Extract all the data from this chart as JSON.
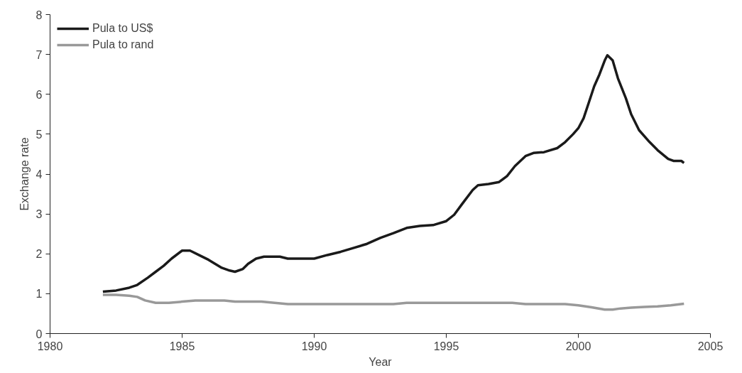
{
  "chart_data": {
    "type": "line",
    "xlabel": "Year",
    "ylabel": "Exchange rate",
    "xlim": [
      1980,
      2005
    ],
    "ylim": [
      0,
      8
    ],
    "xticks": [
      1980,
      1985,
      1990,
      1995,
      2000,
      2005
    ],
    "yticks": [
      0,
      1,
      2,
      3,
      4,
      5,
      6,
      7,
      8
    ],
    "grid": false,
    "legend": "top left",
    "line_style": "solid",
    "marker": "none",
    "series": [
      {
        "name": "Pula to US$",
        "color": "#1a1a1a",
        "x": [
          1982,
          1982.5,
          1983,
          1983.3,
          1983.7,
          1984,
          1984.3,
          1984.6,
          1985,
          1985.3,
          1985.7,
          1986,
          1986.5,
          1986.8,
          1987,
          1987.3,
          1987.5,
          1987.8,
          1988.1,
          1988.7,
          1989,
          1989.5,
          1990,
          1990.5,
          1991,
          1991.5,
          1992,
          1992.5,
          1993,
          1993.5,
          1994,
          1994.5,
          1995,
          1995.3,
          1995.6,
          1996,
          1996.2,
          1996.6,
          1997,
          1997.3,
          1997.6,
          1998,
          1998.3,
          1998.7,
          1999.2,
          1999.5,
          1999.8,
          2000,
          2000.2,
          2000.4,
          2000.6,
          2000.8,
          2001,
          2001.1,
          2001.3,
          2001.5,
          2001.8,
          2002,
          2002.3,
          2002.7,
          2003,
          2003.4,
          2003.6,
          2003.9,
          2004
        ],
        "values": [
          1.05,
          1.08,
          1.15,
          1.22,
          1.4,
          1.55,
          1.7,
          1.88,
          2.08,
          2.08,
          1.95,
          1.85,
          1.65,
          1.58,
          1.55,
          1.62,
          1.75,
          1.88,
          1.93,
          1.93,
          1.88,
          1.88,
          1.88,
          1.97,
          2.05,
          2.15,
          2.25,
          2.4,
          2.52,
          2.65,
          2.7,
          2.72,
          2.82,
          2.98,
          3.25,
          3.6,
          3.72,
          3.75,
          3.8,
          3.95,
          4.2,
          4.45,
          4.53,
          4.55,
          4.65,
          4.8,
          5.0,
          5.15,
          5.4,
          5.8,
          6.2,
          6.5,
          6.85,
          6.98,
          6.85,
          6.4,
          5.9,
          5.5,
          5.1,
          4.8,
          4.6,
          4.38,
          4.33,
          4.33,
          4.28
        ]
      },
      {
        "name": "Pula to rand",
        "color": "#999999",
        "x": [
          1982,
          1982.5,
          1983,
          1983.3,
          1983.6,
          1984,
          1984.5,
          1985,
          1985.5,
          1986,
          1986.6,
          1987,
          1987.5,
          1988,
          1988.5,
          1989,
          1990,
          1991,
          1992,
          1993,
          1993.5,
          1994,
          1995,
          1996,
          1997,
          1997.5,
          1998,
          1999,
          1999.5,
          2000,
          2000.5,
          2001,
          2001.3,
          2001.6,
          2002,
          2002.5,
          2003,
          2003.5,
          2004
        ],
        "values": [
          0.97,
          0.97,
          0.95,
          0.92,
          0.83,
          0.77,
          0.77,
          0.8,
          0.83,
          0.83,
          0.83,
          0.8,
          0.8,
          0.8,
          0.77,
          0.74,
          0.74,
          0.74,
          0.74,
          0.74,
          0.77,
          0.77,
          0.77,
          0.77,
          0.77,
          0.77,
          0.74,
          0.74,
          0.74,
          0.71,
          0.66,
          0.6,
          0.6,
          0.63,
          0.65,
          0.67,
          0.68,
          0.71,
          0.75
        ]
      }
    ]
  }
}
